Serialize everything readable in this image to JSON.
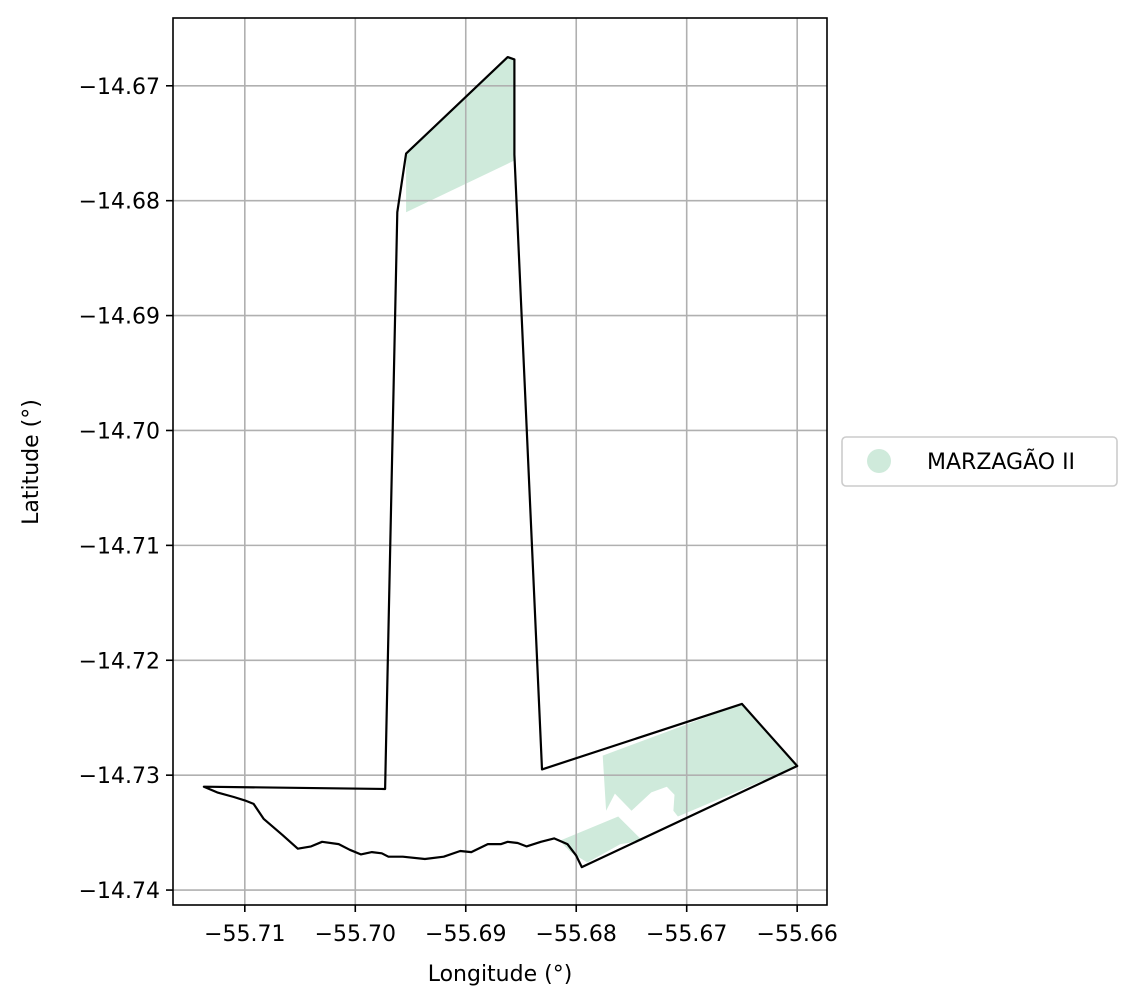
{
  "chart_data": {
    "type": "map",
    "xlabel": "Longitude (°)",
    "ylabel": "Latitude (°)",
    "xlim": [
      -55.7165,
      -55.6573
    ],
    "ylim": [
      -14.7413,
      -14.6641
    ],
    "grid": true,
    "x_ticks": [
      {
        "value": -55.71,
        "label": "−55.71"
      },
      {
        "value": -55.7,
        "label": "−55.70"
      },
      {
        "value": -55.69,
        "label": "−55.69"
      },
      {
        "value": -55.68,
        "label": "−55.68"
      },
      {
        "value": -55.67,
        "label": "−55.67"
      },
      {
        "value": -55.66,
        "label": "−55.66"
      }
    ],
    "y_ticks": [
      {
        "value": -14.67,
        "label": "−14.67"
      },
      {
        "value": -14.68,
        "label": "−14.68"
      },
      {
        "value": -14.69,
        "label": "−14.69"
      },
      {
        "value": -14.7,
        "label": "−14.70"
      },
      {
        "value": -14.71,
        "label": "−14.71"
      },
      {
        "value": -14.72,
        "label": "−14.72"
      },
      {
        "value": -14.73,
        "label": "−14.73"
      },
      {
        "value": -14.74,
        "label": "−14.74"
      }
    ],
    "legend": {
      "placement": "right",
      "entries": [
        {
          "label": "MARZAGÃO II",
          "color": "#cfeadb"
        }
      ]
    },
    "fill_color": "#cfeadb",
    "outline_color": "#000000",
    "filled_areas": [
      {
        "name": "north-area",
        "points": [
          [
            -55.6954,
            -14.6759
          ],
          [
            -55.6862,
            -14.6675
          ],
          [
            -55.6856,
            -14.6677
          ],
          [
            -55.6856,
            -14.6765
          ],
          [
            -55.6954,
            -14.681
          ]
        ]
      },
      {
        "name": "southeast-area",
        "points": [
          [
            -55.6776,
            -14.7283
          ],
          [
            -55.665,
            -14.7238
          ],
          [
            -55.66,
            -14.7292
          ],
          [
            -55.6708,
            -14.7336
          ],
          [
            -55.6712,
            -14.7331
          ],
          [
            -55.6711,
            -14.7317
          ],
          [
            -55.6718,
            -14.731
          ],
          [
            -55.6732,
            -14.7315
          ],
          [
            -55.675,
            -14.7331
          ],
          [
            -55.674,
            -14.7357
          ],
          [
            -55.6762,
            -14.7336
          ],
          [
            -55.6815,
            -14.7357
          ],
          [
            -55.6805,
            -14.7367
          ],
          [
            -55.679,
            -14.7376
          ],
          [
            -55.676,
            -14.736
          ],
          [
            -55.674,
            -14.7357
          ],
          [
            -55.675,
            -14.7331
          ],
          [
            -55.6765,
            -14.7316
          ],
          [
            -55.6773,
            -14.7331
          ],
          [
            -55.6776,
            -14.7283
          ]
        ]
      }
    ],
    "outline": [
      [
        -55.7137,
        -14.731
      ],
      [
        -55.6973,
        -14.7312
      ],
      [
        -55.6962,
        -14.681
      ],
      [
        -55.6954,
        -14.6759
      ],
      [
        -55.6862,
        -14.6675
      ],
      [
        -55.6856,
        -14.6677
      ],
      [
        -55.6856,
        -14.676
      ],
      [
        -55.6831,
        -14.7295
      ],
      [
        -55.665,
        -14.7238
      ],
      [
        -55.66,
        -14.7292
      ],
      [
        -55.6795,
        -14.738
      ],
      [
        -55.68,
        -14.737
      ],
      [
        -55.6808,
        -14.736
      ],
      [
        -55.682,
        -14.7355
      ],
      [
        -55.6832,
        -14.7358
      ],
      [
        -55.6845,
        -14.7362
      ],
      [
        -55.6853,
        -14.7359
      ],
      [
        -55.6862,
        -14.7358
      ],
      [
        -55.6868,
        -14.736
      ],
      [
        -55.688,
        -14.736
      ],
      [
        -55.6895,
        -14.7367
      ],
      [
        -55.6905,
        -14.7366
      ],
      [
        -55.692,
        -14.7371
      ],
      [
        -55.6937,
        -14.7373
      ],
      [
        -55.6957,
        -14.7371
      ],
      [
        -55.697,
        -14.7371
      ],
      [
        -55.6976,
        -14.7368
      ],
      [
        -55.6985,
        -14.7367
      ],
      [
        -55.6995,
        -14.7369
      ],
      [
        -55.7005,
        -14.7365
      ],
      [
        -55.7015,
        -14.736
      ],
      [
        -55.703,
        -14.7358
      ],
      [
        -55.704,
        -14.7362
      ],
      [
        -55.7052,
        -14.7364
      ],
      [
        -55.7066,
        -14.7352
      ],
      [
        -55.7083,
        -14.7338
      ],
      [
        -55.7092,
        -14.7325
      ],
      [
        -55.71,
        -14.7322
      ],
      [
        -55.711,
        -14.7319
      ],
      [
        -55.7125,
        -14.7315
      ],
      [
        -55.7137,
        -14.731
      ]
    ]
  }
}
